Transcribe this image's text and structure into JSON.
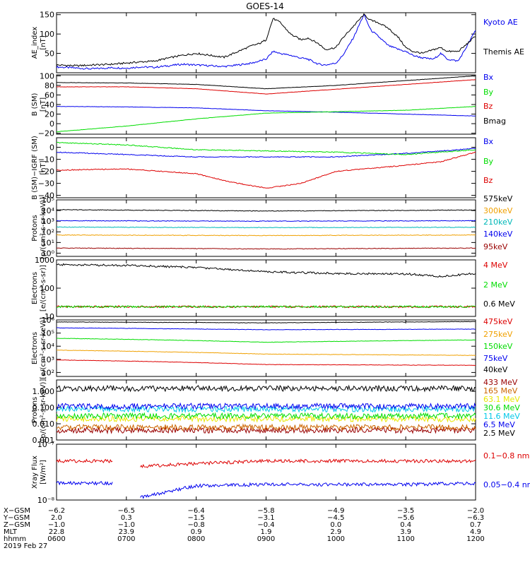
{
  "title": "GOES-14",
  "colors": {
    "black": "#000000",
    "blue": "#0000ee",
    "red": "#dd0000",
    "green": "#00dd00",
    "orange": "#f0a000",
    "teal": "#00b8b8",
    "darkred": "#990000",
    "cyan": "#00c8e8",
    "yellow": "#e8e800",
    "purple": "#bb00bb",
    "brown": "#cc6600"
  },
  "chart_data": [
    {
      "type": "line",
      "ylabel": [
        "AE_index",
        "[nT]"
      ],
      "ylim": [
        0,
        155
      ],
      "ticks": [
        {
          "v": 0,
          "label": ""
        },
        {
          "v": 50,
          "label": "50"
        },
        {
          "v": 100,
          "label": "100"
        },
        {
          "v": 150,
          "label": "150"
        }
      ],
      "series": [
        {
          "name": "Kyoto AE",
          "color": "blue",
          "x": [
            0,
            0.3,
            0.5,
            0.8,
            1.0,
            1.2,
            1.4,
            1.6,
            1.8,
            2.0,
            2.2,
            2.4,
            2.6,
            2.8,
            2.9,
            3.0,
            3.1,
            3.2,
            3.35,
            3.5,
            3.6,
            3.75,
            3.85,
            4.0,
            4.1,
            4.25,
            4.4,
            4.5,
            4.6,
            4.75,
            4.9,
            5.0,
            5.1,
            5.25,
            5.4,
            5.5,
            5.6,
            5.75,
            5.85,
            6.0
          ],
          "y": [
            15,
            12,
            10,
            13,
            12,
            15,
            14,
            18,
            22,
            20,
            18,
            16,
            20,
            25,
            30,
            35,
            55,
            50,
            45,
            38,
            35,
            22,
            20,
            25,
            45,
            90,
            150,
            110,
            95,
            70,
            60,
            55,
            45,
            38,
            35,
            50,
            35,
            30,
            60,
            110
          ]
        },
        {
          "name": "Themis AE",
          "color": "black",
          "x": [
            0,
            0.3,
            0.5,
            0.8,
            1.0,
            1.2,
            1.4,
            1.6,
            1.8,
            2.0,
            2.2,
            2.4,
            2.6,
            2.8,
            2.9,
            3.0,
            3.1,
            3.2,
            3.35,
            3.5,
            3.6,
            3.75,
            3.85,
            4.0,
            4.1,
            4.25,
            4.4,
            4.5,
            4.6,
            4.75,
            4.9,
            5.0,
            5.1,
            5.25,
            5.4,
            5.5,
            5.6,
            5.75,
            5.85,
            6.0
          ],
          "y": [
            20,
            18,
            20,
            22,
            25,
            28,
            30,
            38,
            45,
            50,
            45,
            40,
            55,
            70,
            75,
            85,
            140,
            130,
            100,
            85,
            90,
            75,
            60,
            65,
            90,
            120,
            150,
            135,
            130,
            115,
            90,
            65,
            55,
            50,
            60,
            65,
            55,
            55,
            70,
            95
          ]
        }
      ]
    },
    {
      "type": "line",
      "ylabel": [
        "B (SM)",
        "[nT]"
      ],
      "ylim": [
        -22,
        102
      ],
      "ticks": [
        {
          "v": -20,
          "label": "−20"
        },
        {
          "v": 0,
          "label": "0"
        },
        {
          "v": 20,
          "label": "20"
        },
        {
          "v": 40,
          "label": "40"
        },
        {
          "v": 60,
          "label": "60"
        },
        {
          "v": 80,
          "label": "80"
        },
        {
          "v": 100,
          "label": "100"
        }
      ],
      "series": [
        {
          "name": "Bx",
          "color": "blue",
          "x": [
            0,
            1,
            2,
            3,
            4,
            5,
            6
          ],
          "y": [
            36,
            35,
            33,
            27,
            24,
            20,
            16
          ]
        },
        {
          "name": "By",
          "color": "green",
          "x": [
            0,
            1,
            2,
            3,
            4,
            5,
            6
          ],
          "y": [
            -17,
            -5,
            10,
            22,
            25,
            28,
            36
          ]
        },
        {
          "name": "Bz",
          "color": "red",
          "x": [
            0,
            1,
            2,
            3,
            4,
            5,
            6
          ],
          "y": [
            77,
            77,
            73,
            62,
            72,
            82,
            92
          ]
        },
        {
          "name": "Bmag",
          "color": "black",
          "x": [
            0,
            1,
            2,
            3,
            4,
            5,
            6
          ],
          "y": [
            86,
            85,
            82,
            73,
            80,
            90,
            100
          ]
        }
      ]
    },
    {
      "type": "line",
      "ylabel": [
        "B (SM)−IGRF (SM)",
        "[nT]"
      ],
      "ylim": [
        -42,
        8
      ],
      "ticks": [
        {
          "v": -40,
          "label": "−40"
        },
        {
          "v": -30,
          "label": "−30"
        },
        {
          "v": -20,
          "label": "−20"
        },
        {
          "v": -10,
          "label": "−10"
        },
        {
          "v": 0,
          "label": "0"
        }
      ],
      "series": [
        {
          "name": "Bx",
          "color": "blue",
          "x": [
            0,
            1,
            2,
            3,
            4,
            5,
            5.5,
            6
          ],
          "y": [
            -4,
            -6,
            -8,
            -8,
            -8,
            -5,
            -3,
            -1
          ]
        },
        {
          "name": "By",
          "color": "green",
          "x": [
            0,
            1,
            2,
            3,
            4,
            5,
            5.5,
            6
          ],
          "y": [
            4,
            2,
            -2,
            -3,
            -4,
            -6,
            -4,
            -2
          ]
        },
        {
          "name": "Bz",
          "color": "red",
          "x": [
            0,
            1,
            2,
            2.5,
            3,
            3.5,
            4,
            5,
            5.5,
            6
          ],
          "y": [
            -19,
            -18,
            -22,
            -29,
            -34,
            -30,
            -20,
            -15,
            -12,
            -4
          ]
        }
      ]
    },
    {
      "type": "line",
      "ylabel": [
        "Protons",
        "[p/(cm²-s-sr-keV)]"
      ],
      "yscale": "log",
      "ylim": [
        0.5,
        100000
      ],
      "ticks": [
        {
          "v": 1,
          "label": "10⁰"
        },
        {
          "v": 10,
          "label": "10¹"
        },
        {
          "v": 100,
          "label": "10²"
        },
        {
          "v": 1000,
          "label": "10³"
        },
        {
          "v": 10000,
          "label": "10⁴"
        },
        {
          "v": 100000,
          "label": "10⁵"
        }
      ],
      "series": [
        {
          "name": "575keV",
          "color": "black",
          "x": [
            0,
            3,
            6
          ],
          "y": [
            12000,
            9000,
            11000
          ]
        },
        {
          "name": "300keV",
          "color": "orange",
          "x": [
            0,
            3,
            6
          ],
          "y": [
            50,
            45,
            50
          ]
        },
        {
          "name": "210keV",
          "color": "teal",
          "x": [
            0,
            3,
            6
          ],
          "y": [
            280,
            250,
            270
          ]
        },
        {
          "name": "140keV",
          "color": "blue",
          "x": [
            0,
            3,
            6
          ],
          "y": [
            1100,
            1000,
            1100
          ]
        },
        {
          "name": "95keV",
          "color": "darkred",
          "x": [
            0,
            3,
            6
          ],
          "y": [
            3,
            2.5,
            3
          ]
        }
      ]
    },
    {
      "type": "line",
      "ylabel": [
        "Electrons",
        "[e/(cm²-s-sr)]"
      ],
      "yscale": "log",
      "ylim": [
        10,
        1000
      ],
      "ticks": [
        {
          "v": 10,
          "label": "10"
        },
        {
          "v": 100,
          "label": "100"
        },
        {
          "v": 1000,
          "label": "1000"
        }
      ],
      "series": [
        {
          "name": "4 MeV",
          "color": "red",
          "x": [
            0,
            6
          ],
          "y": [
            22,
            22
          ]
        },
        {
          "name": "2 MeV",
          "color": "green",
          "x": [
            0,
            6
          ],
          "y": [
            22,
            22
          ]
        },
        {
          "name": "0.6 MeV",
          "color": "black",
          "x": [
            0,
            1,
            2,
            3,
            4,
            5,
            5.5,
            6
          ],
          "y": [
            680,
            640,
            540,
            380,
            330,
            320,
            260,
            330
          ]
        }
      ]
    },
    {
      "type": "line",
      "ylabel": [
        "Electrons",
        "[e/(cm²-s-sr-keV)]"
      ],
      "yscale": "log",
      "ylim": [
        50,
        1000000
      ],
      "ticks": [
        {
          "v": 100,
          "label": "10²"
        },
        {
          "v": 1000,
          "label": "10³"
        },
        {
          "v": 10000,
          "label": "10⁴"
        },
        {
          "v": 100000,
          "label": "10⁵"
        },
        {
          "v": 1000000,
          "label": "10⁶"
        }
      ],
      "series": [
        {
          "name": "475keV",
          "color": "red",
          "x": [
            0,
            3,
            6
          ],
          "y": [
            900,
            400,
            350
          ]
        },
        {
          "name": "275keV",
          "color": "orange",
          "x": [
            0,
            3,
            6
          ],
          "y": [
            5000,
            2500,
            2000
          ]
        },
        {
          "name": "150keV",
          "color": "green",
          "x": [
            0,
            3,
            6
          ],
          "y": [
            40000,
            20000,
            30000
          ]
        },
        {
          "name": "75keV",
          "color": "blue",
          "x": [
            0,
            3,
            6
          ],
          "y": [
            250000,
            180000,
            200000
          ]
        },
        {
          "name": "40keV",
          "color": "black",
          "x": [
            0,
            3,
            6
          ],
          "y": [
            700000,
            600000,
            750000
          ]
        }
      ]
    },
    {
      "type": "line",
      "ylabel": [
        "Protons",
        "[p/(cm²-s-sr-keV)]"
      ],
      "yscale": "log",
      "ylim": [
        0.001,
        5
      ],
      "ticks": [
        {
          "v": 0.001,
          "label": "0.001"
        },
        {
          "v": 0.01,
          "label": "0.010"
        },
        {
          "v": 0.1,
          "label": "0.100"
        },
        {
          "v": 1,
          "label": "1.000"
        }
      ],
      "series": [
        {
          "name": "433 MeV",
          "color": "darkred",
          "x": [
            0,
            6
          ],
          "y": [
            0.004,
            0.004
          ]
        },
        {
          "name": "165 MeV",
          "color": "brown",
          "x": [
            0,
            6
          ],
          "y": [
            0.006,
            0.006
          ]
        },
        {
          "name": "63.1 MeV",
          "color": "yellow",
          "x": [
            0,
            6
          ],
          "y": [
            0.02,
            0.02
          ]
        },
        {
          "name": "30.6 MeV",
          "color": "green",
          "x": [
            0,
            6
          ],
          "y": [
            0.03,
            0.03
          ]
        },
        {
          "name": "11.6 MeV",
          "color": "cyan",
          "x": [
            0,
            6
          ],
          "y": [
            0.08,
            0.08
          ]
        },
        {
          "name": "6.5 MeV",
          "color": "blue",
          "x": [
            0,
            6
          ],
          "y": [
            0.12,
            0.12
          ]
        },
        {
          "name": "2.5 MeV",
          "color": "black",
          "x": [
            0,
            6
          ],
          "y": [
            1.5,
            1.5
          ]
        }
      ]
    },
    {
      "type": "line",
      "ylabel": [
        "Xray Flux",
        "[W/m²]"
      ],
      "yscale": "log",
      "ylim": [
        1e-08,
        1e-07
      ],
      "ticks": [
        {
          "v": 1e-08,
          "label": "10⁻⁸"
        },
        {
          "v": 1e-07,
          "label": "10⁻⁷"
        }
      ],
      "series": [
        {
          "name": "0.1−0.8 nm",
          "color": "red",
          "segments": [
            {
              "x": [
                0,
                0.8
              ],
              "y": [
                5e-08,
                5e-08
              ]
            },
            {
              "x": [
                1.2,
                2,
                3,
                4,
                5,
                6
              ],
              "y": [
                4e-08,
                4.5e-08,
                5e-08,
                5e-08,
                5e-08,
                5e-08
              ]
            }
          ]
        },
        {
          "name": "0.05−0.4 nm",
          "color": "blue",
          "segments": [
            {
              "x": [
                0,
                0.8
              ],
              "y": [
                2e-08,
                2e-08
              ]
            },
            {
              "x": [
                1.2,
                1.6,
                2,
                3,
                4,
                5,
                6
              ],
              "y": [
                1.1e-08,
                1.4e-08,
                1.8e-08,
                1.9e-08,
                1.9e-08,
                1.9e-08,
                2e-08
              ]
            }
          ]
        }
      ]
    }
  ],
  "ephemeris": {
    "row_labels": [
      "X−GSM",
      "Y−GSM",
      "Z−GSM",
      "MLT",
      "hhmm"
    ],
    "columns": [
      [
        "−6.2",
        "2.0",
        "−1.0",
        "22.8",
        "0600"
      ],
      [
        "−6.5",
        "0.3",
        "−1.0",
        "23.9",
        "0700"
      ],
      [
        "−6.4",
        "−1.5",
        "−0.8",
        "0.9",
        "0800"
      ],
      [
        "−5.8",
        "−3.1",
        "−0.4",
        "1.9",
        "0900"
      ],
      [
        "−4.9",
        "−4.5",
        "0.0",
        "2.9",
        "1000"
      ],
      [
        "−3.5",
        "−5.6",
        "0.4",
        "3.9",
        "1100"
      ],
      [
        "−2.0",
        "−6.3",
        "0.7",
        "4.9",
        "1200"
      ]
    ],
    "date": "2019 Feb 27"
  }
}
